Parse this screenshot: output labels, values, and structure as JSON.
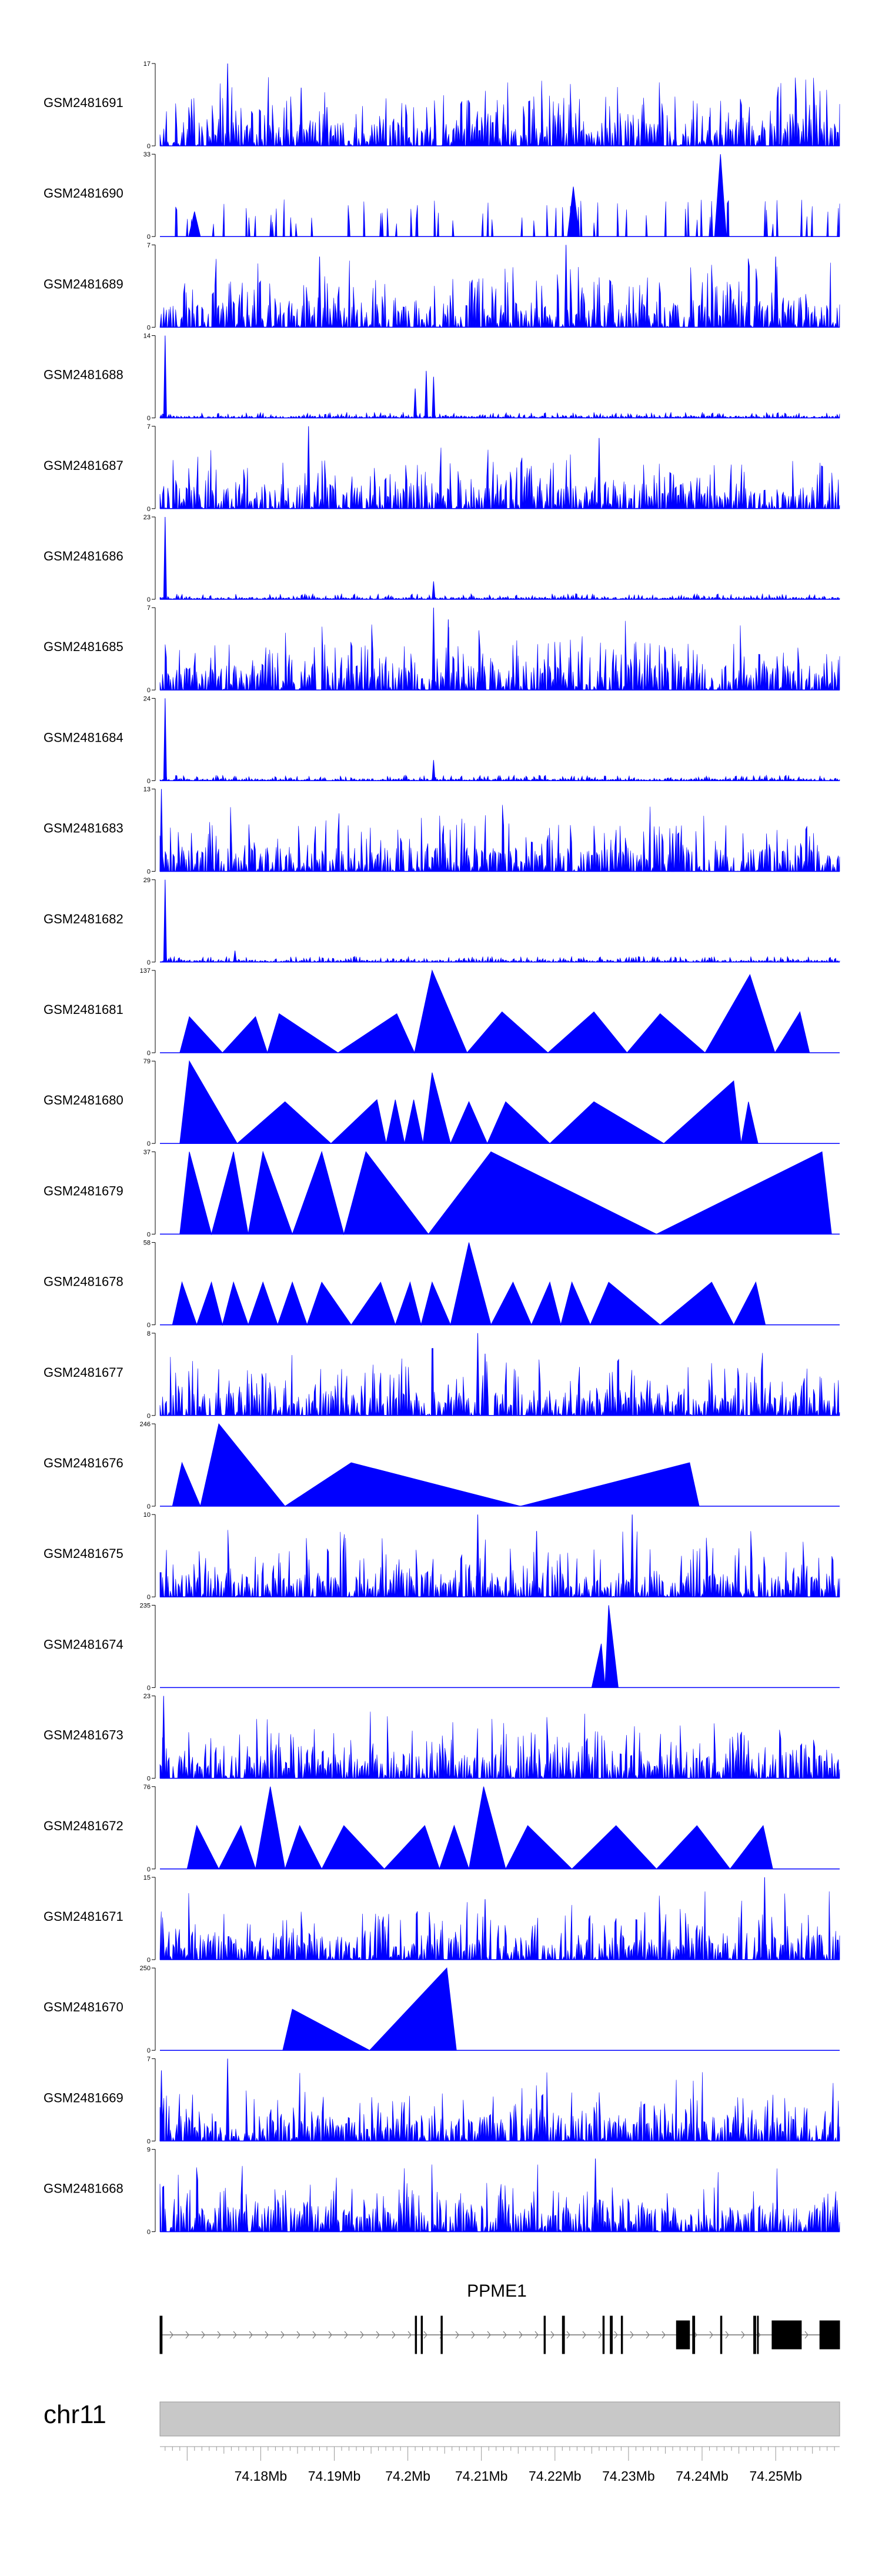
{
  "chart_data": {
    "type": "area",
    "xlim": [
      74.1663,
      74.2587
    ],
    "x_unit": "Mb",
    "grid": false,
    "legend": "none",
    "series_color": "#0000ff",
    "tracks": [
      {
        "name": "GSM2481691",
        "ymax": 17,
        "y_tick_labels": [
          "17",
          "0"
        ],
        "pattern": "noise",
        "peaks": [
          [
            74.1755,
            17
          ],
          [
            74.1855,
            12
          ],
          [
            74.189,
            8
          ],
          [
            74.212,
            7
          ],
          [
            74.232,
            5
          ],
          [
            74.241,
            6
          ]
        ]
      },
      {
        "name": "GSM2481690",
        "ymax": 33,
        "y_tick_labels": [
          "33",
          "0"
        ],
        "pattern": "sparse",
        "peaks": [
          [
            74.2225,
            20
          ],
          [
            74.2425,
            33
          ],
          [
            74.171,
            10
          ]
        ]
      },
      {
        "name": "GSM2481689",
        "ymax": 7,
        "y_tick_labels": [
          "7",
          "0"
        ],
        "pattern": "noise",
        "peaks": [
          [
            74.188,
            6
          ],
          [
            74.2215,
            7
          ],
          [
            74.25,
            6
          ]
        ]
      },
      {
        "name": "GSM2481688",
        "ymax": 14,
        "y_tick_labels": [
          "14",
          "0"
        ],
        "pattern": "lowspike",
        "peaks": [
          [
            74.167,
            14
          ],
          [
            74.2025,
            8
          ],
          [
            74.2035,
            7
          ],
          [
            74.201,
            5
          ]
        ]
      },
      {
        "name": "GSM2481687",
        "ymax": 7,
        "y_tick_labels": [
          "7",
          "0"
        ],
        "pattern": "noise",
        "peaks": [
          [
            74.1865,
            7
          ],
          [
            74.226,
            6
          ]
        ]
      },
      {
        "name": "GSM2481686",
        "ymax": 23,
        "y_tick_labels": [
          "23",
          "0"
        ],
        "pattern": "lowspike",
        "peaks": [
          [
            74.167,
            23
          ],
          [
            74.2035,
            5
          ]
        ]
      },
      {
        "name": "GSM2481685",
        "ymax": 7,
        "y_tick_labels": [
          "7",
          "0"
        ],
        "pattern": "noise",
        "peaks": [
          [
            74.2035,
            7
          ],
          [
            74.2055,
            6
          ]
        ]
      },
      {
        "name": "GSM2481684",
        "ymax": 24,
        "y_tick_labels": [
          "24",
          "0"
        ],
        "pattern": "lowspike",
        "peaks": [
          [
            74.167,
            24
          ],
          [
            74.2035,
            6
          ]
        ]
      },
      {
        "name": "GSM2481683",
        "ymax": 13,
        "y_tick_labels": [
          "13",
          "0"
        ],
        "pattern": "noise",
        "peaks": [
          [
            74.1665,
            13
          ],
          [
            74.236,
            6
          ]
        ]
      },
      {
        "name": "GSM2481682",
        "ymax": 29,
        "y_tick_labels": [
          "29",
          "0"
        ],
        "pattern": "lowspike",
        "peaks": [
          [
            74.167,
            29
          ],
          [
            74.1765,
            4
          ]
        ]
      },
      {
        "name": "GSM2481681",
        "ymax": 137,
        "y_tick_labels": [
          "137",
          "0"
        ],
        "pattern": "triangles",
        "peaks": [
          [
            74.1703,
            60
          ],
          [
            74.1793,
            60
          ],
          [
            74.1825,
            65
          ],
          [
            74.1985,
            65
          ],
          [
            74.2033,
            137
          ],
          [
            74.2128,
            68
          ],
          [
            74.2253,
            68
          ],
          [
            74.2343,
            65
          ],
          [
            74.2465,
            130
          ],
          [
            74.2533,
            68
          ]
        ]
      },
      {
        "name": "GSM2481680",
        "ymax": 79,
        "y_tick_labels": [
          "79",
          "0"
        ],
        "pattern": "triangles",
        "peaks": [
          [
            74.1703,
            79
          ],
          [
            74.1833,
            40
          ],
          [
            74.1958,
            42
          ],
          [
            74.1983,
            42
          ],
          [
            74.2008,
            42
          ],
          [
            74.2033,
            68
          ],
          [
            74.2083,
            40
          ],
          [
            74.2133,
            40
          ],
          [
            74.2253,
            40
          ],
          [
            74.2443,
            60
          ],
          [
            74.2463,
            40
          ]
        ]
      },
      {
        "name": "GSM2481679",
        "ymax": 37,
        "y_tick_labels": [
          "37",
          "0"
        ],
        "pattern": "triangles",
        "peaks": [
          [
            74.1703,
            37
          ],
          [
            74.1763,
            37
          ],
          [
            74.1803,
            37
          ],
          [
            74.1883,
            37
          ],
          [
            74.1943,
            37
          ],
          [
            74.2113,
            37
          ],
          [
            74.2563,
            37
          ]
        ]
      },
      {
        "name": "GSM2481678",
        "ymax": 58,
        "y_tick_labels": [
          "58",
          "0"
        ],
        "pattern": "triangles",
        "peaks": [
          [
            74.1693,
            30
          ],
          [
            74.1733,
            30
          ],
          [
            74.1763,
            30
          ],
          [
            74.1803,
            30
          ],
          [
            74.1843,
            30
          ],
          [
            74.1883,
            30
          ],
          [
            74.1963,
            30
          ],
          [
            74.2003,
            30
          ],
          [
            74.2033,
            30
          ],
          [
            74.2083,
            58
          ],
          [
            74.2143,
            30
          ],
          [
            74.2193,
            30
          ],
          [
            74.2223,
            30
          ],
          [
            74.2273,
            30
          ],
          [
            74.2413,
            30
          ],
          [
            74.2473,
            30
          ]
        ]
      },
      {
        "name": "GSM2481677",
        "ymax": 8,
        "y_tick_labels": [
          "8",
          "0"
        ],
        "pattern": "noise",
        "peaks": [
          [
            74.2095,
            8
          ],
          [
            74.2105,
            6
          ],
          [
            74.2055,
            3
          ]
        ]
      },
      {
        "name": "GSM2481676",
        "ymax": 246,
        "y_tick_labels": [
          "246",
          "0"
        ],
        "pattern": "triangles",
        "peaks": [
          [
            74.1693,
            130
          ],
          [
            74.1743,
            246
          ],
          [
            74.1923,
            130
          ],
          [
            74.2383,
            130
          ]
        ]
      },
      {
        "name": "GSM2481675",
        "ymax": 10,
        "y_tick_labels": [
          "10",
          "0"
        ],
        "pattern": "noise",
        "peaks": [
          [
            74.2095,
            10
          ],
          [
            74.2175,
            8
          ],
          [
            74.2305,
            10
          ]
        ]
      },
      {
        "name": "GSM2481674",
        "ymax": 235,
        "y_tick_labels": [
          "235",
          "0"
        ],
        "pattern": "triangles",
        "peaks": [
          [
            74.2263,
            125
          ],
          [
            74.2273,
            235
          ]
        ]
      },
      {
        "name": "GSM2481673",
        "ymax": 23,
        "y_tick_labels": [
          "23",
          "0"
        ],
        "pattern": "noise",
        "peaks": [
          [
            74.1668,
            23
          ]
        ]
      },
      {
        "name": "GSM2481672",
        "ymax": 76,
        "y_tick_labels": [
          "76",
          "0"
        ],
        "pattern": "triangles",
        "peaks": [
          [
            74.1713,
            40
          ],
          [
            74.1773,
            40
          ],
          [
            74.1813,
            76
          ],
          [
            74.1853,
            40
          ],
          [
            74.1913,
            40
          ],
          [
            74.2023,
            40
          ],
          [
            74.2063,
            40
          ],
          [
            74.2103,
            76
          ],
          [
            74.2163,
            40
          ],
          [
            74.2283,
            40
          ],
          [
            74.2393,
            40
          ],
          [
            74.2483,
            40
          ]
        ]
      },
      {
        "name": "GSM2481671",
        "ymax": 15,
        "y_tick_labels": [
          "15",
          "0"
        ],
        "pattern": "noise",
        "peaks": [
          [
            74.2485,
            15
          ],
          [
            74.2105,
            11
          ]
        ]
      },
      {
        "name": "GSM2481670",
        "ymax": 250,
        "y_tick_labels": [
          "250",
          "0"
        ],
        "pattern": "triangles",
        "peaks": [
          [
            74.1843,
            125
          ],
          [
            74.2053,
            250
          ]
        ]
      },
      {
        "name": "GSM2481669",
        "ymax": 7,
        "y_tick_labels": [
          "7",
          "0"
        ],
        "pattern": "noise",
        "peaks": [
          [
            74.1755,
            7
          ],
          [
            74.1665,
            6
          ]
        ]
      },
      {
        "name": "GSM2481668",
        "ymax": 9,
        "y_tick_labels": [
          "9",
          "0"
        ],
        "pattern": "noise",
        "peaks": [
          [
            74.2255,
            8
          ]
        ]
      }
    ],
    "gene": {
      "name": "PPME1",
      "strand": "+",
      "start": 74.1663,
      "end": 74.2587,
      "exons": [
        [
          74.1663,
          74.1666
        ],
        [
          74.201,
          74.2012
        ],
        [
          74.2018,
          74.202
        ],
        [
          74.2045,
          74.2047
        ],
        [
          74.2185,
          74.2187
        ],
        [
          74.221,
          74.2213
        ],
        [
          74.2265,
          74.2267
        ],
        [
          74.2275,
          74.2278
        ],
        [
          74.229,
          74.2292
        ],
        [
          74.2365,
          74.2383
        ],
        [
          74.2387,
          74.239
        ],
        [
          74.2425,
          74.2427
        ],
        [
          74.247,
          74.2473
        ],
        [
          74.2475,
          74.2475
        ],
        [
          74.2495,
          74.2535
        ],
        [
          74.256,
          74.2587
        ]
      ]
    },
    "chromosome": "chr11",
    "x_ticks": [
      74.18,
      74.19,
      74.2,
      74.21,
      74.22,
      74.23,
      74.24,
      74.25
    ],
    "x_tick_labels": [
      "74.18Mb",
      "74.19Mb",
      "74.2Mb",
      "74.21Mb",
      "74.22Mb",
      "74.23Mb",
      "74.24Mb",
      "74.25Mb"
    ]
  }
}
